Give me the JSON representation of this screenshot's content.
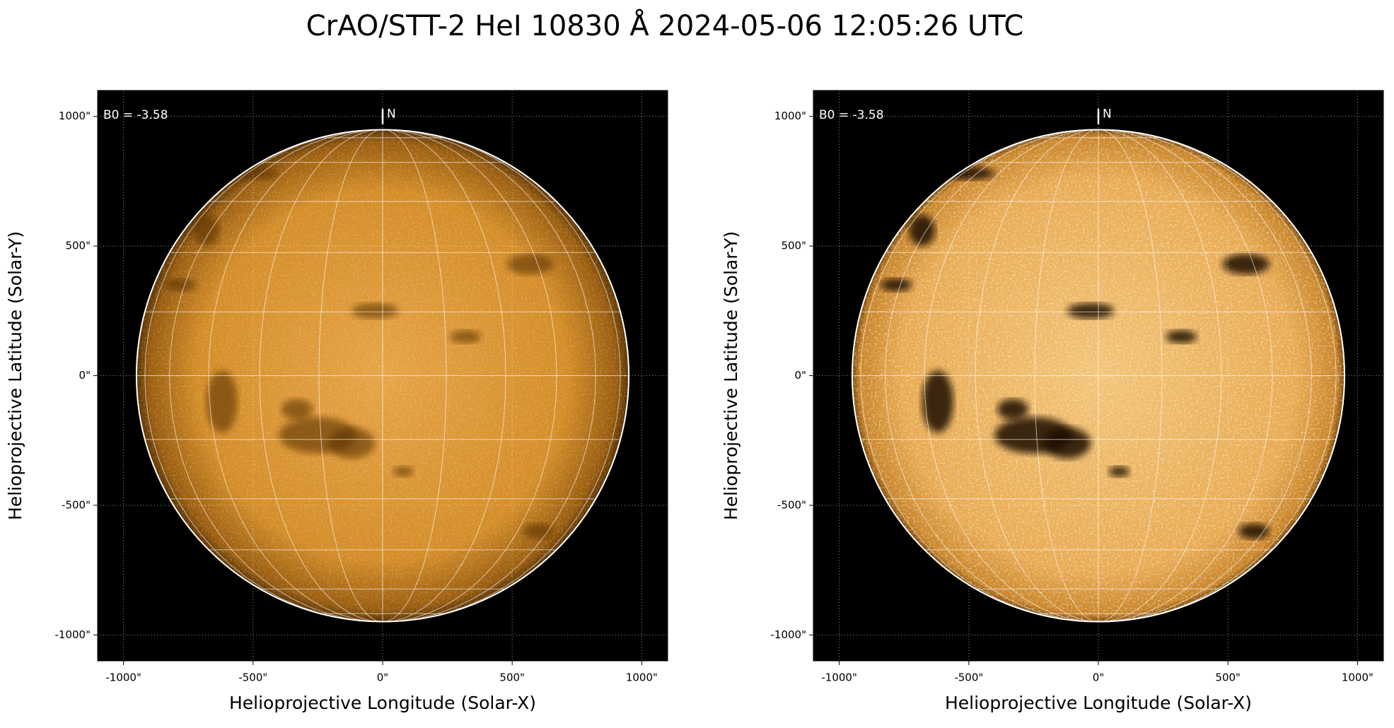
{
  "title": "CrAO/STT-2 HeI 10830 Å 2024-05-06 12:05:26 UTC",
  "chart_data": [
    {
      "type": "image",
      "xlabel": "Helioprojective Longitude (Solar-X)",
      "ylabel": "Helioprojective Latitude (Solar-Y)",
      "annotation": "B0 = -3.58",
      "north_label": "N",
      "contrast": "normal",
      "xlim": [
        -1100,
        1100
      ],
      "ylim": [
        -1100,
        1100
      ],
      "xticks": [
        {
          "value": -1000,
          "label": "-1000\""
        },
        {
          "value": -500,
          "label": "-500\""
        },
        {
          "value": 0,
          "label": "0\""
        },
        {
          "value": 500,
          "label": "500\""
        },
        {
          "value": 1000,
          "label": "1000\""
        }
      ],
      "yticks": [
        {
          "value": -1000,
          "label": "-1000\""
        },
        {
          "value": -500,
          "label": "-500\""
        },
        {
          "value": 0,
          "label": "0\""
        },
        {
          "value": 500,
          "label": "500\""
        },
        {
          "value": 1000,
          "label": "1000\""
        }
      ],
      "grid": true
    },
    {
      "type": "image",
      "xlabel": "Helioprojective Longitude (Solar-X)",
      "ylabel": "Helioprojective Latitude (Solar-Y)",
      "annotation": "B0 = -3.58",
      "north_label": "N",
      "contrast": "high",
      "xlim": [
        -1100,
        1100
      ],
      "ylim": [
        -1100,
        1100
      ],
      "xticks": [
        {
          "value": -1000,
          "label": "-1000\""
        },
        {
          "value": -500,
          "label": "-500\""
        },
        {
          "value": 0,
          "label": "0\""
        },
        {
          "value": 500,
          "label": "500\""
        },
        {
          "value": 1000,
          "label": "1000\""
        }
      ],
      "yticks": [
        {
          "value": -1000,
          "label": "-1000\""
        },
        {
          "value": -500,
          "label": "-500\""
        },
        {
          "value": 0,
          "label": "0\""
        },
        {
          "value": 500,
          "label": "500\""
        },
        {
          "value": 1000,
          "label": "1000\""
        }
      ],
      "grid": true
    }
  ]
}
